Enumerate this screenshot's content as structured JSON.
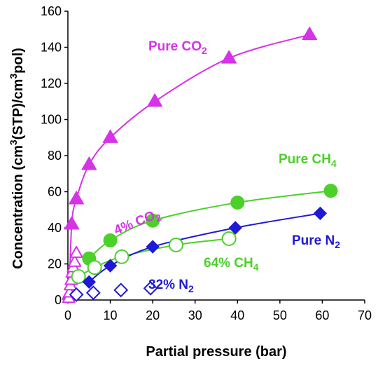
{
  "chart_data": {
    "type": "scatter",
    "xlabel": "Partial pressure (bar)",
    "ylabel_parts": {
      "a": "Concentration (cm",
      "sup1": "3",
      "b": "(STP)/cm",
      "sup2": "3",
      "c": "pol)"
    },
    "xlim": [
      0,
      70
    ],
    "ylim": [
      0,
      160
    ],
    "xticks": [
      0,
      10,
      20,
      30,
      40,
      50,
      60,
      70
    ],
    "yticks": [
      0,
      20,
      40,
      60,
      80,
      100,
      120,
      140,
      160
    ],
    "grid": false,
    "colors": {
      "co2": "#d633e8",
      "ch4": "#4cd02a",
      "n2": "#1f19d6"
    },
    "series": [
      {
        "key": "pure_co2",
        "label": {
          "text": "Pure CO",
          "sub": "2"
        },
        "marker": "triangle",
        "filled": true,
        "color": "#d633e8",
        "curve": true,
        "x": [
          0.3,
          0.9,
          2.0,
          5.0,
          10.0,
          20.5,
          38.0,
          57.0
        ],
        "y": [
          3,
          42,
          56,
          75,
          90,
          110,
          134,
          147
        ]
      },
      {
        "key": "mix_co2",
        "label": {
          "text": "4% CO",
          "sub": "2"
        },
        "marker": "triangle",
        "filled": false,
        "color": "#d633e8",
        "curve": false,
        "label_rotate": -22,
        "x": [
          0.2,
          0.4,
          0.6,
          0.8,
          1.0,
          1.3,
          1.6,
          2.0
        ],
        "y": [
          1,
          4,
          8,
          11,
          15,
          18,
          21,
          26
        ]
      },
      {
        "key": "pure_ch4",
        "label": {
          "text": "Pure CH",
          "sub": "4"
        },
        "marker": "circle",
        "filled": true,
        "color": "#4cd02a",
        "curve": true,
        "x": [
          5.0,
          10.0,
          20.0,
          40.0,
          62.0
        ],
        "y": [
          23,
          33,
          44,
          54,
          60.5
        ]
      },
      {
        "key": "mix_ch4",
        "label": {
          "text": "64% CH",
          "sub": "4"
        },
        "marker": "circle",
        "filled": false,
        "color": "#4cd02a",
        "curve": true,
        "x": [
          2.5,
          6.3,
          12.7,
          25.5,
          38.0
        ],
        "y": [
          13,
          18,
          24,
          30.5,
          34
        ]
      },
      {
        "key": "pure_n2",
        "label": {
          "text": "Pure N",
          "sub": "2"
        },
        "marker": "diamond",
        "filled": true,
        "color": "#1f19d6",
        "curve": true,
        "x": [
          5.0,
          10.0,
          20.0,
          39.5,
          59.5
        ],
        "y": [
          10,
          19,
          29.5,
          40,
          48
        ]
      },
      {
        "key": "mix_n2",
        "label": {
          "text": "32% N",
          "sub": "2"
        },
        "marker": "diamond",
        "filled": false,
        "color": "#1f19d6",
        "curve": false,
        "x": [
          2.0,
          6.0,
          12.5,
          19.5
        ],
        "y": [
          3,
          4,
          5.5,
          6.5
        ]
      }
    ]
  }
}
